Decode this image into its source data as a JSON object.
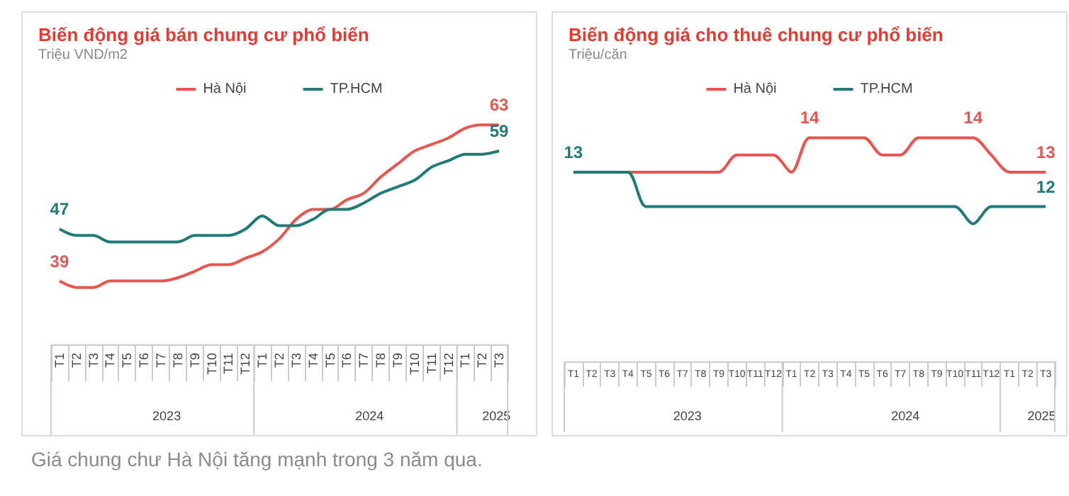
{
  "chart_data": [
    {
      "type": "line",
      "title": "Biến động giá bán chung cư phổ biến",
      "subtitle": "Triệu VND/m2",
      "legend": "top",
      "marker": "none",
      "line_style": "solid",
      "grid": false,
      "categories": [
        "T1",
        "T2",
        "T3",
        "T4",
        "T5",
        "T6",
        "T7",
        "T8",
        "T9",
        "T10",
        "T11",
        "T12",
        "T1",
        "T2",
        "T3",
        "T4",
        "T5",
        "T6",
        "T7",
        "T8",
        "T9",
        "T10",
        "T11",
        "T12",
        "T1",
        "T2",
        "T3"
      ],
      "annotations": [
        "2023",
        "2024",
        "2025"
      ],
      "series": [
        {
          "name": "Hà Nội",
          "color": "#e8554e",
          "values": [
            39,
            38,
            38,
            39,
            39,
            39,
            39,
            39.5,
            40.5,
            41.5,
            41.5,
            42.5,
            43.5,
            45.5,
            48.5,
            50,
            50,
            51.5,
            52.5,
            55,
            57,
            59,
            60,
            61,
            62.5,
            63,
            63
          ],
          "value_labels": [
            "39",
            null,
            null,
            null,
            null,
            null,
            null,
            null,
            null,
            null,
            null,
            null,
            null,
            null,
            null,
            null,
            null,
            null,
            null,
            null,
            null,
            null,
            null,
            null,
            null,
            null,
            "63"
          ]
        },
        {
          "name": "TP.HCM",
          "color": "#1f7a78",
          "values": [
            47,
            46,
            46,
            45,
            45,
            45,
            45,
            45,
            46,
            46,
            46,
            47,
            49,
            47.5,
            47.5,
            48.5,
            50,
            50,
            51,
            52.5,
            53.5,
            54.5,
            56.5,
            57.5,
            58.5,
            58.5,
            59
          ],
          "value_labels": [
            "47",
            null,
            null,
            null,
            null,
            null,
            null,
            null,
            null,
            null,
            null,
            null,
            null,
            null,
            null,
            null,
            null,
            null,
            null,
            null,
            null,
            null,
            null,
            null,
            null,
            null,
            "59"
          ]
        }
      ]
    },
    {
      "type": "line",
      "title": "Biến động giá cho thuê chung cư phổ biến",
      "subtitle": "Triệu/căn",
      "legend": "top",
      "marker": "none",
      "line_style": "solid",
      "grid": false,
      "categories": [
        "T1",
        "T2",
        "T3",
        "T4",
        "T5",
        "T6",
        "T7",
        "T8",
        "T9",
        "T10",
        "T11",
        "T12",
        "T1",
        "T2",
        "T3",
        "T4",
        "T5",
        "T6",
        "T7",
        "T8",
        "T9",
        "T10",
        "T11",
        "T12",
        "T1",
        "T2",
        "T3"
      ],
      "annotations": [
        "2023",
        "2024",
        "2025"
      ],
      "series": [
        {
          "name": "Hà Nội",
          "color": "#e8554e",
          "values": [
            null,
            null,
            null,
            13,
            13,
            13,
            13,
            13,
            13,
            13.5,
            13.5,
            13.5,
            13,
            14,
            14,
            14,
            14,
            13.5,
            13.5,
            14,
            14,
            14,
            14,
            13.5,
            13,
            13,
            13
          ],
          "value_labels": [
            null,
            null,
            null,
            null,
            null,
            null,
            null,
            null,
            null,
            null,
            null,
            null,
            null,
            "14",
            null,
            null,
            null,
            null,
            null,
            null,
            null,
            null,
            "14",
            null,
            null,
            null,
            "13"
          ]
        },
        {
          "name": "TP.HCM",
          "color": "#1f7a78",
          "values": [
            13,
            13,
            13,
            13,
            12,
            12,
            12,
            12,
            12,
            12,
            12,
            12,
            12,
            12,
            12,
            12,
            12,
            12,
            12,
            12,
            12,
            12,
            11.5,
            12,
            12,
            12,
            12
          ],
          "value_labels": [
            "13",
            null,
            null,
            null,
            null,
            null,
            null,
            null,
            null,
            null,
            null,
            null,
            null,
            null,
            null,
            null,
            null,
            null,
            null,
            null,
            null,
            null,
            null,
            null,
            null,
            null,
            "12"
          ]
        }
      ]
    },
    {
      "type": "other",
      "annotations": [
        "Giá chung chư Hà Nội tăng mạnh trong 3 năm qua."
      ]
    }
  ]
}
